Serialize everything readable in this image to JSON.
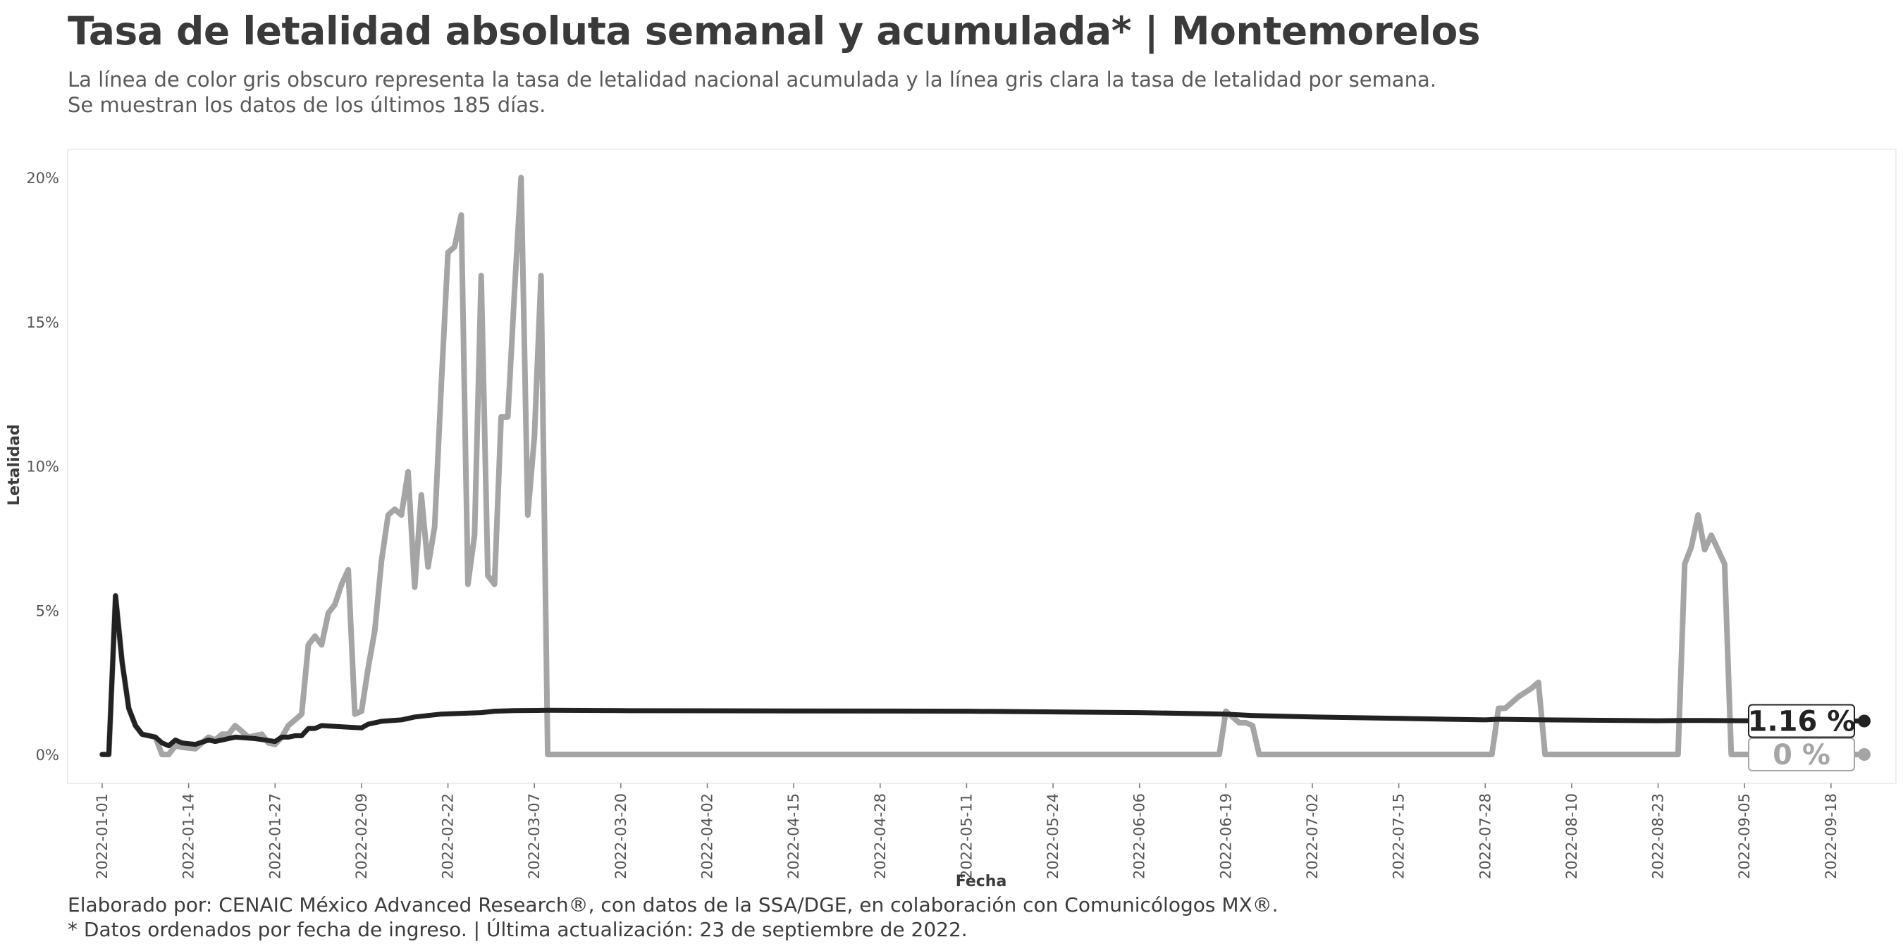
{
  "header": {
    "title": "Tasa de letalidad absoluta semanal y acumulada* | Montemorelos",
    "subtitle_line1": "La línea de color gris obscuro representa la tasa de letalidad nacional acumulada y la línea gris clara la tasa de letalidad por semana.",
    "subtitle_line2": "Se muestran los datos de los últimos 185 días."
  },
  "footer": {
    "caption_line1": "Elaborado por: CENAIC México Advanced Research®, con datos de la SSA/DGE, en colaboración con Comunicólogos MX®.",
    "caption_line2": "* Datos ordenados por fecha de ingreso. | Última actualización: 23 de septiembre de 2022."
  },
  "colors": {
    "accumulated": "#222222",
    "weekly": "#a5a5a5",
    "panel_border": "#eeeeee"
  },
  "chart_data": {
    "type": "line",
    "xlabel": "Fecha",
    "ylabel": "Letalidad",
    "x_range": [
      "2022-01-01",
      "2022-09-23"
    ],
    "ylim": [
      0,
      20
    ],
    "x_ticks": [
      "2022-01-01",
      "2022-01-14",
      "2022-01-27",
      "2022-02-09",
      "2022-02-22",
      "2022-03-07",
      "2022-03-20",
      "2022-04-02",
      "2022-04-15",
      "2022-04-28",
      "2022-05-11",
      "2022-05-24",
      "2022-06-06",
      "2022-06-19",
      "2022-07-02",
      "2022-07-15",
      "2022-07-28",
      "2022-08-10",
      "2022-08-23",
      "2022-09-05",
      "2022-09-18"
    ],
    "y_ticks": [
      0,
      5,
      10,
      15,
      20
    ],
    "y_tick_labels": [
      "0%",
      "5%",
      "10%",
      "15%",
      "20%"
    ],
    "grid": false,
    "end_labels": {
      "accumulated": "1.16 %",
      "weekly": "0 %"
    },
    "series": [
      {
        "key": "weekly",
        "points": [
          [
            "2022-01-01",
            0
          ],
          [
            "2022-01-02",
            0
          ],
          [
            "2022-01-03",
            5.5
          ],
          [
            "2022-01-04",
            3.2
          ],
          [
            "2022-01-05",
            1.6
          ],
          [
            "2022-01-06",
            1.0
          ],
          [
            "2022-01-07",
            0.7
          ],
          [
            "2022-01-09",
            0.6
          ],
          [
            "2022-01-10",
            0
          ],
          [
            "2022-01-11",
            0
          ],
          [
            "2022-01-12",
            0.3
          ],
          [
            "2022-01-13",
            0.25
          ],
          [
            "2022-01-15",
            0.2
          ],
          [
            "2022-01-17",
            0.6
          ],
          [
            "2022-01-18",
            0.5
          ],
          [
            "2022-01-19",
            0.7
          ],
          [
            "2022-01-20",
            0.7
          ],
          [
            "2022-01-21",
            1.0
          ],
          [
            "2022-01-22",
            0.8
          ],
          [
            "2022-01-23",
            0.6
          ],
          [
            "2022-01-25",
            0.7
          ],
          [
            "2022-01-26",
            0.4
          ],
          [
            "2022-01-27",
            0.35
          ],
          [
            "2022-01-28",
            0.6
          ],
          [
            "2022-01-29",
            1.0
          ],
          [
            "2022-01-30",
            1.2
          ],
          [
            "2022-01-31",
            1.4
          ],
          [
            "2022-02-01",
            3.8
          ],
          [
            "2022-02-02",
            4.1
          ],
          [
            "2022-02-03",
            3.8
          ],
          [
            "2022-02-04",
            4.9
          ],
          [
            "2022-02-05",
            5.2
          ],
          [
            "2022-02-06",
            5.9
          ],
          [
            "2022-02-07",
            6.4
          ],
          [
            "2022-02-08",
            1.4
          ],
          [
            "2022-02-09",
            1.5
          ],
          [
            "2022-02-10",
            3.0
          ],
          [
            "2022-02-11",
            4.3
          ],
          [
            "2022-02-12",
            6.7
          ],
          [
            "2022-02-13",
            8.3
          ],
          [
            "2022-02-14",
            8.5
          ],
          [
            "2022-02-15",
            8.3
          ],
          [
            "2022-02-16",
            9.8
          ],
          [
            "2022-02-17",
            5.8
          ],
          [
            "2022-02-18",
            9.0
          ],
          [
            "2022-02-19",
            6.5
          ],
          [
            "2022-02-20",
            7.9
          ],
          [
            "2022-02-21",
            12.8
          ],
          [
            "2022-02-22",
            17.4
          ],
          [
            "2022-02-23",
            17.6
          ],
          [
            "2022-02-24",
            18.7
          ],
          [
            "2022-02-25",
            5.9
          ],
          [
            "2022-02-26",
            7.6
          ],
          [
            "2022-02-27",
            16.6
          ],
          [
            "2022-02-28",
            6.2
          ],
          [
            "2022-03-01",
            5.9
          ],
          [
            "2022-03-02",
            11.7
          ],
          [
            "2022-03-03",
            11.7
          ],
          [
            "2022-03-04",
            16.0
          ],
          [
            "2022-03-05",
            20.0
          ],
          [
            "2022-03-06",
            8.3
          ],
          [
            "2022-03-07",
            11.0
          ],
          [
            "2022-03-08",
            16.6
          ],
          [
            "2022-03-09",
            0
          ],
          [
            "2022-06-18",
            0
          ],
          [
            "2022-06-19",
            1.5
          ],
          [
            "2022-06-20",
            1.3
          ],
          [
            "2022-06-21",
            1.1
          ],
          [
            "2022-06-22",
            1.1
          ],
          [
            "2022-06-23",
            1.0
          ],
          [
            "2022-06-24",
            0
          ],
          [
            "2022-07-29",
            0
          ],
          [
            "2022-07-30",
            1.6
          ],
          [
            "2022-07-31",
            1.6
          ],
          [
            "2022-08-02",
            2.0
          ],
          [
            "2022-08-04",
            2.3
          ],
          [
            "2022-08-05",
            2.5
          ],
          [
            "2022-08-06",
            0
          ],
          [
            "2022-08-26",
            0
          ],
          [
            "2022-08-27",
            6.6
          ],
          [
            "2022-08-28",
            7.2
          ],
          [
            "2022-08-29",
            8.3
          ],
          [
            "2022-08-30",
            7.1
          ],
          [
            "2022-08-31",
            7.6
          ],
          [
            "2022-09-01",
            7.1
          ],
          [
            "2022-09-02",
            6.6
          ],
          [
            "2022-09-03",
            0
          ],
          [
            "2022-09-23",
            0
          ]
        ]
      },
      {
        "key": "accumulated",
        "points": [
          [
            "2022-01-01",
            0
          ],
          [
            "2022-01-02",
            0
          ],
          [
            "2022-01-03",
            5.5
          ],
          [
            "2022-01-04",
            3.2
          ],
          [
            "2022-01-05",
            1.6
          ],
          [
            "2022-01-06",
            1.0
          ],
          [
            "2022-01-07",
            0.7
          ],
          [
            "2022-01-09",
            0.6
          ],
          [
            "2022-01-10",
            0.4
          ],
          [
            "2022-01-11",
            0.3
          ],
          [
            "2022-01-12",
            0.5
          ],
          [
            "2022-01-13",
            0.4
          ],
          [
            "2022-01-15",
            0.35
          ],
          [
            "2022-01-17",
            0.5
          ],
          [
            "2022-01-18",
            0.45
          ],
          [
            "2022-01-20",
            0.55
          ],
          [
            "2022-01-21",
            0.6
          ],
          [
            "2022-01-24",
            0.55
          ],
          [
            "2022-01-27",
            0.45
          ],
          [
            "2022-01-28",
            0.6
          ],
          [
            "2022-01-29",
            0.6
          ],
          [
            "2022-01-30",
            0.65
          ],
          [
            "2022-01-31",
            0.65
          ],
          [
            "2022-02-01",
            0.9
          ],
          [
            "2022-02-02",
            0.9
          ],
          [
            "2022-02-03",
            1.0
          ],
          [
            "2022-02-09",
            0.92
          ],
          [
            "2022-02-10",
            1.05
          ],
          [
            "2022-02-12",
            1.15
          ],
          [
            "2022-02-15",
            1.2
          ],
          [
            "2022-02-17",
            1.3
          ],
          [
            "2022-02-19",
            1.35
          ],
          [
            "2022-02-21",
            1.4
          ],
          [
            "2022-02-27",
            1.45
          ],
          [
            "2022-03-01",
            1.5
          ],
          [
            "2022-03-04",
            1.52
          ],
          [
            "2022-03-09",
            1.53
          ],
          [
            "2022-03-20",
            1.52
          ],
          [
            "2022-04-15",
            1.51
          ],
          [
            "2022-05-11",
            1.5
          ],
          [
            "2022-06-06",
            1.45
          ],
          [
            "2022-06-19",
            1.4
          ],
          [
            "2022-06-23",
            1.35
          ],
          [
            "2022-07-02",
            1.3
          ],
          [
            "2022-07-15",
            1.25
          ],
          [
            "2022-07-28",
            1.2
          ],
          [
            "2022-07-30",
            1.22
          ],
          [
            "2022-08-06",
            1.2
          ],
          [
            "2022-08-23",
            1.17
          ],
          [
            "2022-08-27",
            1.18
          ],
          [
            "2022-09-05",
            1.17
          ],
          [
            "2022-09-23",
            1.16
          ]
        ]
      }
    ]
  }
}
